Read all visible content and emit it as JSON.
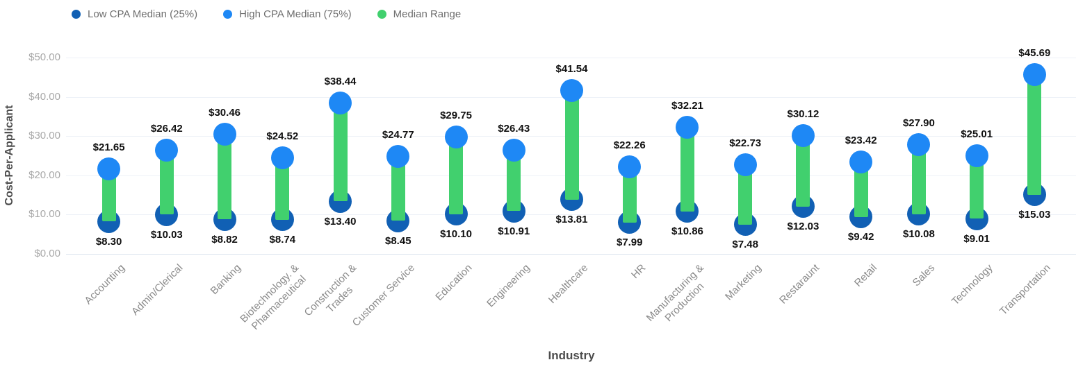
{
  "colors": {
    "low_marker": "#1160B4",
    "high_marker": "#1E88F5",
    "range_bar": "#41D06E",
    "grid": "#EDF1F7",
    "axis_title_text": "#4D4D4D",
    "tick_text": "#A8A8A8",
    "legend_text": "#6E6E6E",
    "value_label_text": "#111111"
  },
  "legend": {
    "items": [
      {
        "label": "Low CPA Median (25%)",
        "color": "#1160B4"
      },
      {
        "label": "High CPA Median (75%)",
        "color": "#1E88F5"
      },
      {
        "label": "Median Range",
        "color": "#41D06E"
      }
    ]
  },
  "chart_data": {
    "type": "dumbbell",
    "title": "",
    "xlabel": "Industry",
    "ylabel": "Cost-Per-Applicant",
    "ylim": [
      0,
      50
    ],
    "grid": "horizontal",
    "legend_position": "top-left",
    "value_prefix": "$",
    "y_ticks": [
      {
        "value": 0,
        "label": "$0.00"
      },
      {
        "value": 10,
        "label": "$10.00"
      },
      {
        "value": 20,
        "label": "$20.00"
      },
      {
        "value": 30,
        "label": "$30.00"
      },
      {
        "value": 40,
        "label": "$40.00"
      },
      {
        "value": 50,
        "label": "$50.00"
      }
    ],
    "categories": [
      [
        "Accounting"
      ],
      [
        "Admin/Clerical"
      ],
      [
        "Banking"
      ],
      [
        "Biotechnology. &",
        "Pharmaceutical"
      ],
      [
        "Construction &",
        "Trades"
      ],
      [
        "Customer Service"
      ],
      [
        "Education"
      ],
      [
        "Engineering"
      ],
      [
        "Healthcare"
      ],
      [
        "HR"
      ],
      [
        "Manufacturing &",
        "Production"
      ],
      [
        "Marketing"
      ],
      [
        "Restaraunt"
      ],
      [
        "Retail"
      ],
      [
        "Sales"
      ],
      [
        "Technology"
      ],
      [
        "Transportation"
      ]
    ],
    "series": [
      {
        "name": "Low CPA Median (25%)",
        "role": "low",
        "color": "#1160B4",
        "values": [
          8.3,
          10.03,
          8.82,
          8.74,
          13.4,
          8.45,
          10.1,
          10.91,
          13.81,
          7.99,
          10.86,
          7.48,
          12.03,
          9.42,
          10.08,
          9.01,
          15.03
        ]
      },
      {
        "name": "High CPA Median (75%)",
        "role": "high",
        "color": "#1E88F5",
        "values": [
          21.65,
          26.42,
          30.46,
          24.52,
          38.44,
          24.77,
          29.75,
          26.43,
          41.54,
          22.26,
          32.21,
          22.73,
          30.12,
          23.42,
          27.9,
          25.01,
          45.69
        ]
      }
    ],
    "range_series_name": "Median Range",
    "range_color": "#41D06E"
  }
}
